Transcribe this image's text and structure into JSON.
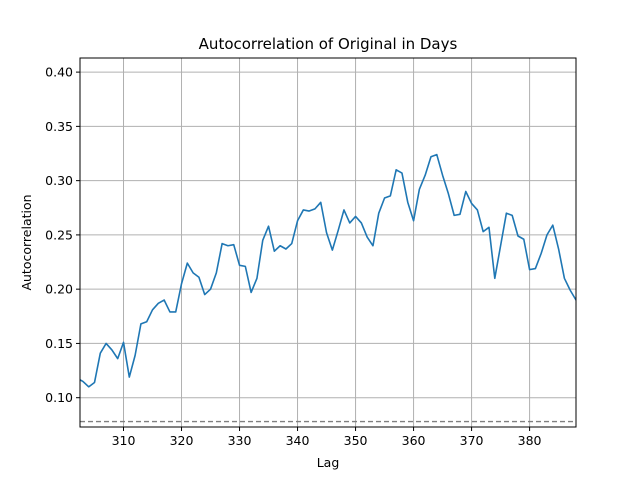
{
  "chart_data": {
    "type": "line",
    "title": "Autocorrelation of Original in Days",
    "xlabel": "Lag",
    "ylabel": "Autocorrelation",
    "xlim": [
      302.5,
      388
    ],
    "ylim": [
      0.073,
      0.413
    ],
    "xticks": [
      310,
      320,
      330,
      340,
      350,
      360,
      370,
      380
    ],
    "xtick_labels": [
      "310",
      "320",
      "330",
      "340",
      "350",
      "360",
      "370",
      "380"
    ],
    "yticks": [
      0.1,
      0.15,
      0.2,
      0.25,
      0.3,
      0.35,
      0.4
    ],
    "ytick_labels": [
      "0.10",
      "0.15",
      "0.20",
      "0.25",
      "0.30",
      "0.35",
      "0.40"
    ],
    "grid": true,
    "line_color": "#1f77b4",
    "reference_lines": [
      {
        "y": 0.078,
        "style": "dashed",
        "color": "#808080"
      }
    ],
    "series": [
      {
        "x": [
          302,
          303,
          304,
          305,
          306,
          307,
          308,
          309,
          310,
          311,
          312,
          313,
          314,
          315,
          316,
          317,
          318,
          319,
          320,
          321,
          322,
          323,
          324,
          325,
          326,
          327,
          328,
          329,
          330,
          331,
          332,
          333,
          334,
          335,
          336,
          337,
          338,
          339,
          340,
          341,
          342,
          343,
          344,
          345,
          346,
          347,
          348,
          349,
          350,
          351,
          352,
          353,
          354,
          355,
          356,
          357,
          358,
          359,
          360,
          361,
          362,
          363,
          364,
          365,
          366,
          367,
          368,
          369,
          370,
          371,
          372,
          373,
          374,
          375,
          376,
          377,
          378,
          379,
          380,
          381,
          382,
          383,
          384,
          385,
          386,
          387,
          388,
          389
        ],
        "y": [
          0.118,
          0.115,
          0.11,
          0.114,
          0.141,
          0.15,
          0.144,
          0.136,
          0.151,
          0.119,
          0.139,
          0.168,
          0.17,
          0.181,
          0.187,
          0.19,
          0.179,
          0.179,
          0.205,
          0.224,
          0.215,
          0.211,
          0.195,
          0.2,
          0.215,
          0.242,
          0.24,
          0.241,
          0.222,
          0.221,
          0.197,
          0.21,
          0.245,
          0.258,
          0.235,
          0.24,
          0.237,
          0.242,
          0.263,
          0.273,
          0.272,
          0.274,
          0.28,
          0.252,
          0.236,
          0.254,
          0.273,
          0.261,
          0.267,
          0.261,
          0.248,
          0.24,
          0.27,
          0.284,
          0.286,
          0.31,
          0.307,
          0.28,
          0.263,
          0.292,
          0.305,
          0.322,
          0.324,
          0.305,
          0.288,
          0.268,
          0.269,
          0.29,
          0.279,
          0.273,
          0.253,
          0.257,
          0.21,
          0.24,
          0.27,
          0.268,
          0.249,
          0.246,
          0.218,
          0.219,
          0.233,
          0.25,
          0.259,
          0.237,
          0.21,
          0.199,
          0.19,
          0.18
        ]
      }
    ]
  }
}
